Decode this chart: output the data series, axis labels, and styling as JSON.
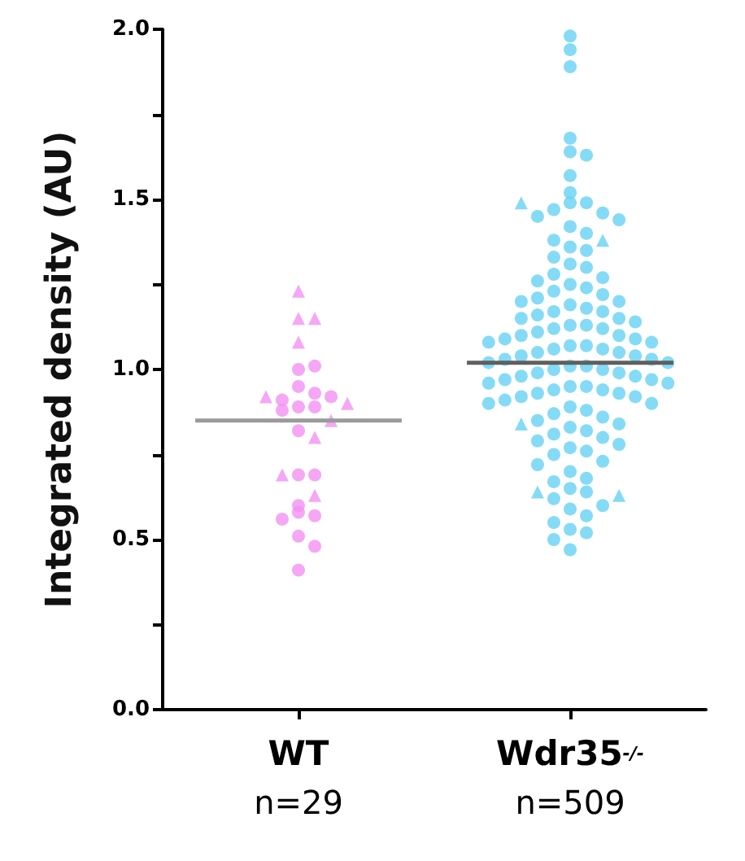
{
  "chart_data": {
    "type": "scatter",
    "ylabel": "Integrated density (AU)",
    "categories": [
      "WT\nn=29",
      "Wdr35$^{-/-}$\nn=509"
    ],
    "ylim": [
      0,
      2
    ],
    "yticks": [
      {
        "value": 0,
        "label": "0.0"
      },
      {
        "value": 0.25,
        "label": null
      },
      {
        "value": 0.5,
        "label": "0.5"
      },
      {
        "value": 0.75,
        "label": null
      },
      {
        "value": 1,
        "label": "1.0"
      },
      {
        "value": 1.25,
        "label": null
      },
      {
        "value": 1.5,
        "label": "1.5"
      },
      {
        "value": 1.75,
        "label": null
      },
      {
        "value": 2,
        "label": "2.0"
      }
    ],
    "grid": false,
    "series": [
      {
        "marker": "circle",
        "color": "#f291f2",
        "x": [
          "WT\nn=29",
          "WT\nn=29",
          "WT\nn=29",
          "WT\nn=29",
          "WT\nn=29",
          "WT\nn=29",
          "WT\nn=29",
          "WT\nn=29",
          "WT\nn=29",
          "WT\nn=29",
          "WT\nn=29",
          "WT\nn=29",
          "WT\nn=29",
          "WT\nn=29",
          "WT\nn=29",
          "WT\nn=29",
          "WT\nn=29",
          "WT\nn=29",
          "WT\nn=29"
        ],
        "values": [
          1.0,
          1.01,
          0.95,
          0.93,
          0.91,
          0.89,
          0.89,
          0.88,
          0.82,
          0.69,
          0.69,
          0.6,
          0.58,
          0.57,
          0.56,
          0.51,
          0.48,
          0.41,
          0.92
        ]
      },
      {
        "marker": "triangle",
        "color": "#f291f2",
        "x": [
          "WT\nn=29",
          "WT\nn=29",
          "WT\nn=29",
          "WT\nn=29",
          "WT\nn=29",
          "WT\nn=29",
          "WT\nn=29",
          "WT\nn=29",
          "WT\nn=29",
          "WT\nn=29"
        ],
        "values": [
          1.23,
          1.15,
          1.15,
          1.08,
          0.92,
          0.9,
          0.85,
          0.8,
          0.69,
          0.63
        ]
      },
      {
        "marker": "circle",
        "color": "#66d2f4",
        "x": [
          "Wdr35$^{-/-}$\nn=509",
          "Wdr35$^{-/-}$\nn=509",
          "Wdr35$^{-/-}$\nn=509",
          "Wdr35$^{-/-}$\nn=509",
          "Wdr35$^{-/-}$\nn=509",
          "Wdr35$^{-/-}$\nn=509",
          "Wdr35$^{-/-}$\nn=509",
          "Wdr35$^{-/-}$\nn=509",
          "Wdr35$^{-/-}$\nn=509",
          "Wdr35$^{-/-}$\nn=509",
          "Wdr35$^{-/-}$\nn=509",
          "Wdr35$^{-/-}$\nn=509",
          "Wdr35$^{-/-}$\nn=509",
          "Wdr35$^{-/-}$\nn=509",
          "Wdr35$^{-/-}$\nn=509",
          "Wdr35$^{-/-}$\nn=509",
          "Wdr35$^{-/-}$\nn=509",
          "Wdr35$^{-/-}$\nn=509",
          "Wdr35$^{-/-}$\nn=509",
          "Wdr35$^{-/-}$\nn=509",
          "Wdr35$^{-/-}$\nn=509",
          "Wdr35$^{-/-}$\nn=509",
          "Wdr35$^{-/-}$\nn=509",
          "Wdr35$^{-/-}$\nn=509",
          "Wdr35$^{-/-}$\nn=509",
          "Wdr35$^{-/-}$\nn=509",
          "Wdr35$^{-/-}$\nn=509",
          "Wdr35$^{-/-}$\nn=509",
          "Wdr35$^{-/-}$\nn=509",
          "Wdr35$^{-/-}$\nn=509",
          "Wdr35$^{-/-}$\nn=509",
          "Wdr35$^{-/-}$\nn=509",
          "Wdr35$^{-/-}$\nn=509",
          "Wdr35$^{-/-}$\nn=509",
          "Wdr35$^{-/-}$\nn=509",
          "Wdr35$^{-/-}$\nn=509",
          "Wdr35$^{-/-}$\nn=509",
          "Wdr35$^{-/-}$\nn=509",
          "Wdr35$^{-/-}$\nn=509",
          "Wdr35$^{-/-}$\nn=509",
          "Wdr35$^{-/-}$\nn=509",
          "Wdr35$^{-/-}$\nn=509",
          "Wdr35$^{-/-}$\nn=509",
          "Wdr35$^{-/-}$\nn=509",
          "Wdr35$^{-/-}$\nn=509",
          "Wdr35$^{-/-}$\nn=509",
          "Wdr35$^{-/-}$\nn=509",
          "Wdr35$^{-/-}$\nn=509",
          "Wdr35$^{-/-}$\nn=509",
          "Wdr35$^{-/-}$\nn=509",
          "Wdr35$^{-/-}$\nn=509",
          "Wdr35$^{-/-}$\nn=509",
          "Wdr35$^{-/-}$\nn=509",
          "Wdr35$^{-/-}$\nn=509",
          "Wdr35$^{-/-}$\nn=509",
          "Wdr35$^{-/-}$\nn=509",
          "Wdr35$^{-/-}$\nn=509",
          "Wdr35$^{-/-}$\nn=509",
          "Wdr35$^{-/-}$\nn=509",
          "Wdr35$^{-/-}$\nn=509",
          "Wdr35$^{-/-}$\nn=509",
          "Wdr35$^{-/-}$\nn=509",
          "Wdr35$^{-/-}$\nn=509",
          "Wdr35$^{-/-}$\nn=509",
          "Wdr35$^{-/-}$\nn=509",
          "Wdr35$^{-/-}$\nn=509",
          "Wdr35$^{-/-}$\nn=509",
          "Wdr35$^{-/-}$\nn=509",
          "Wdr35$^{-/-}$\nn=509",
          "Wdr35$^{-/-}$\nn=509",
          "Wdr35$^{-/-}$\nn=509",
          "Wdr35$^{-/-}$\nn=509",
          "Wdr35$^{-/-}$\nn=509",
          "Wdr35$^{-/-}$\nn=509",
          "Wdr35$^{-/-}$\nn=509",
          "Wdr35$^{-/-}$\nn=509",
          "Wdr35$^{-/-}$\nn=509",
          "Wdr35$^{-/-}$\nn=509",
          "Wdr35$^{-/-}$\nn=509",
          "Wdr35$^{-/-}$\nn=509",
          "Wdr35$^{-/-}$\nn=509",
          "Wdr35$^{-/-}$\nn=509",
          "Wdr35$^{-/-}$\nn=509",
          "Wdr35$^{-/-}$\nn=509",
          "Wdr35$^{-/-}$\nn=509",
          "Wdr35$^{-/-}$\nn=509",
          "Wdr35$^{-/-}$\nn=509",
          "Wdr35$^{-/-}$\nn=509",
          "Wdr35$^{-/-}$\nn=509",
          "Wdr35$^{-/-}$\nn=509",
          "Wdr35$^{-/-}$\nn=509",
          "Wdr35$^{-/-}$\nn=509",
          "Wdr35$^{-/-}$\nn=509",
          "Wdr35$^{-/-}$\nn=509",
          "Wdr35$^{-/-}$\nn=509",
          "Wdr35$^{-/-}$\nn=509",
          "Wdr35$^{-/-}$\nn=509",
          "Wdr35$^{-/-}$\nn=509",
          "Wdr35$^{-/-}$\nn=509",
          "Wdr35$^{-/-}$\nn=509",
          "Wdr35$^{-/-}$\nn=509",
          "Wdr35$^{-/-}$\nn=509",
          "Wdr35$^{-/-}$\nn=509",
          "Wdr35$^{-/-}$\nn=509",
          "Wdr35$^{-/-}$\nn=509",
          "Wdr35$^{-/-}$\nn=509",
          "Wdr35$^{-/-}$\nn=509",
          "Wdr35$^{-/-}$\nn=509",
          "Wdr35$^{-/-}$\nn=509",
          "Wdr35$^{-/-}$\nn=509",
          "Wdr35$^{-/-}$\nn=509",
          "Wdr35$^{-/-}$\nn=509",
          "Wdr35$^{-/-}$\nn=509",
          "Wdr35$^{-/-}$\nn=509",
          "Wdr35$^{-/-}$\nn=509",
          "Wdr35$^{-/-}$\nn=509",
          "Wdr35$^{-/-}$\nn=509"
        ],
        "values": [
          1.98,
          1.94,
          1.89,
          1.49,
          1.68,
          1.64,
          1.63,
          1.57,
          1.52,
          1.49,
          1.47,
          1.46,
          1.45,
          1.44,
          1.42,
          1.4,
          1.38,
          1.36,
          1.35,
          1.33,
          1.31,
          1.3,
          1.28,
          1.27,
          1.26,
          1.25,
          1.24,
          1.23,
          1.22,
          1.21,
          1.2,
          1.2,
          1.19,
          1.18,
          1.17,
          1.17,
          1.16,
          1.15,
          1.15,
          1.14,
          1.13,
          1.13,
          1.12,
          1.12,
          1.11,
          1.1,
          1.1,
          1.09,
          1.09,
          1.08,
          1.08,
          1.07,
          1.07,
          1.06,
          1.06,
          1.05,
          1.05,
          1.04,
          1.04,
          1.03,
          1.03,
          1.02,
          1.02,
          1.01,
          1.01,
          1.0,
          1.0,
          0.99,
          0.99,
          0.98,
          0.98,
          0.97,
          0.97,
          0.96,
          0.96,
          0.95,
          0.95,
          0.94,
          0.94,
          0.93,
          0.93,
          0.92,
          0.92,
          0.91,
          0.9,
          0.9,
          0.89,
          0.88,
          0.87,
          0.86,
          0.85,
          0.84,
          0.83,
          0.82,
          0.81,
          0.8,
          0.79,
          0.78,
          0.77,
          0.76,
          0.75,
          0.73,
          0.72,
          0.7,
          0.68,
          0.67,
          0.65,
          0.64,
          0.62,
          0.6,
          0.59,
          0.57,
          0.55,
          0.53,
          0.52,
          0.5,
          0.47
        ]
      },
      {
        "marker": "triangle",
        "color": "#66d2f4",
        "x": [
          "Wdr35$^{-/-}$\nn=509",
          "Wdr35$^{-/-}$\nn=509",
          "Wdr35$^{-/-}$\nn=509",
          "Wdr35$^{-/-}$\nn=509",
          "Wdr35$^{-/-}$\nn=509"
        ],
        "values": [
          1.49,
          1.38,
          0.84,
          0.64,
          0.63
        ]
      },
      {
        "type": "box",
        "colors": [
          "#9a9a9a",
          "#5f5f5f"
        ],
        "boxes": [
          {
            "low": 0.85,
            "q1": 0.85,
            "median": 0.85,
            "q3": 0.85,
            "high": 0.85
          },
          {
            "low": 1.02,
            "q1": 1.02,
            "median": 1.02,
            "q3": 1.02,
            "high": 1.02
          }
        ]
      }
    ]
  }
}
